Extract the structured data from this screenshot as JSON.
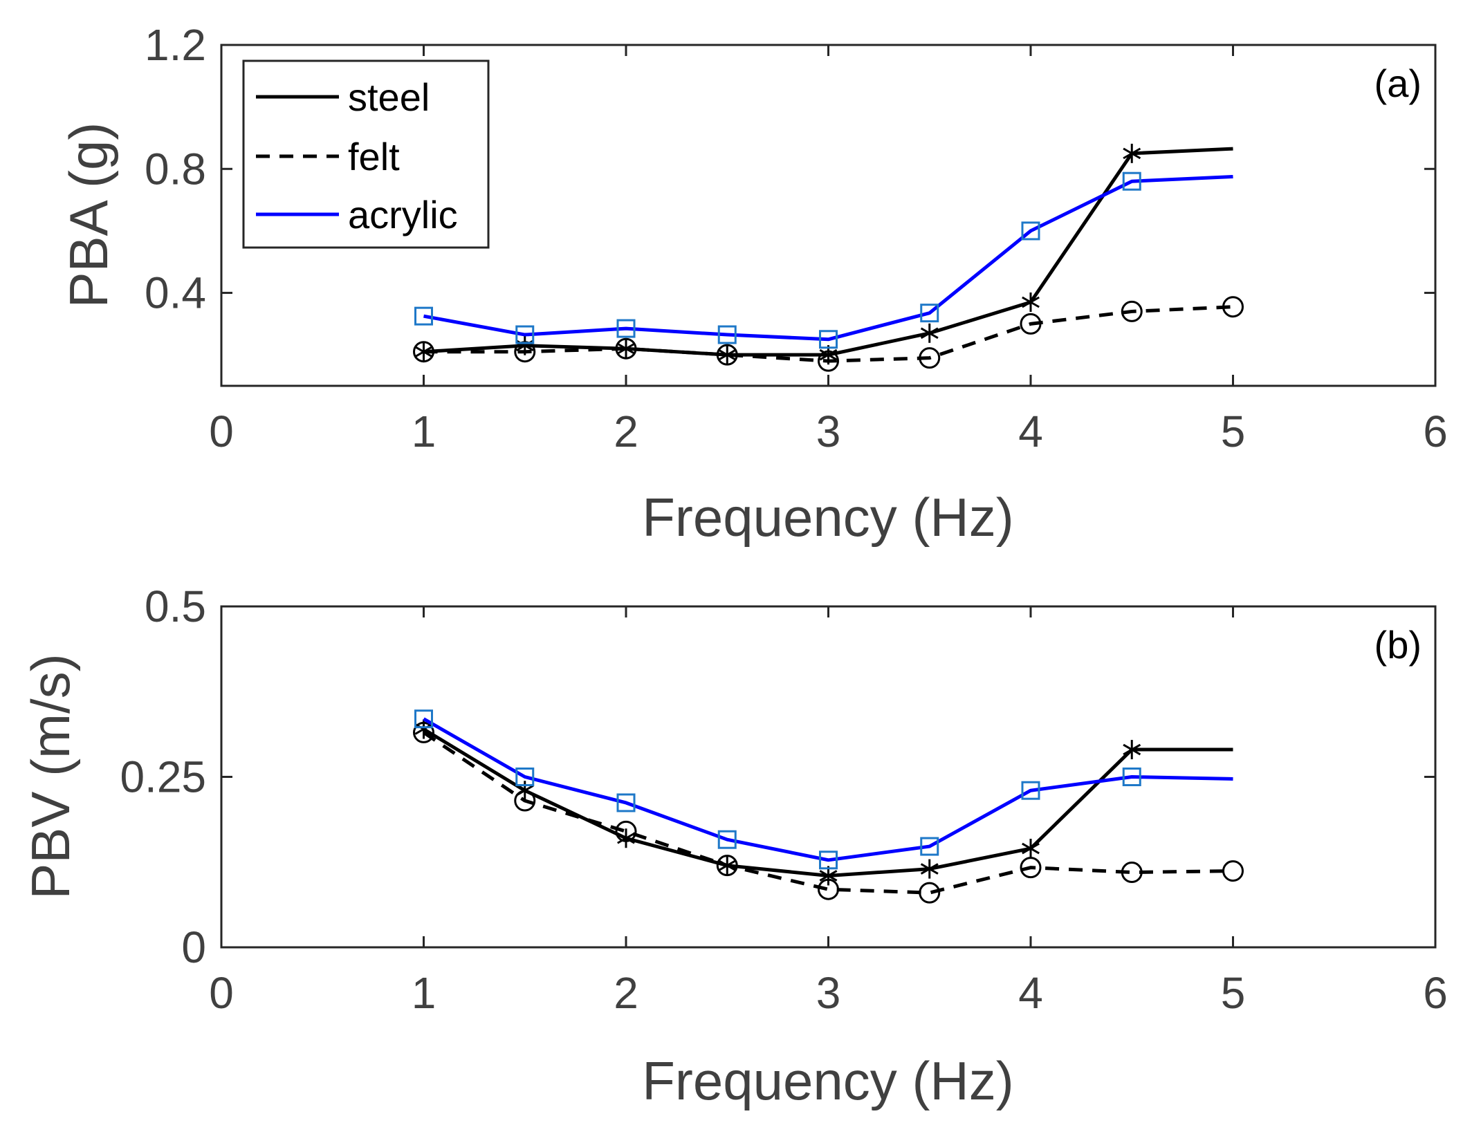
{
  "chart_data": [
    {
      "type": "line",
      "panel_label": "(a)",
      "xlabel": "Frequency (Hz)",
      "ylabel": "PBA (g)",
      "xlim": [
        0,
        6
      ],
      "ylim": [
        0.1,
        1.2
      ],
      "xticks": [
        "0",
        "1",
        "2",
        "3",
        "4",
        "5",
        "6"
      ],
      "yticks": [
        "0.4",
        "0.8",
        "1.2"
      ],
      "ytick_values": [
        0.4,
        0.8,
        1.2
      ],
      "legend": {
        "position": "top-left",
        "entries": [
          "steel",
          "felt",
          "acrylic"
        ]
      },
      "series": [
        {
          "name": "steel",
          "color": "#000000",
          "dash": "solid",
          "marker": "asterisk",
          "x": [
            1,
            1.5,
            2,
            2.5,
            3,
            3.5,
            4,
            4.5,
            5
          ],
          "y": [
            0.21,
            0.23,
            0.22,
            0.2,
            0.2,
            0.27,
            0.37,
            0.85,
            0.865
          ],
          "marker_x": [
            1,
            1.5,
            2,
            2.5,
            3,
            3.5,
            4,
            4.5
          ]
        },
        {
          "name": "felt",
          "color": "#000000",
          "dash": "dashed",
          "marker": "circle",
          "x": [
            1,
            1.5,
            2,
            2.5,
            3,
            3.5,
            4,
            4.5,
            5
          ],
          "y": [
            0.21,
            0.21,
            0.22,
            0.2,
            0.18,
            0.19,
            0.3,
            0.34,
            0.355
          ],
          "marker_x": [
            1,
            1.5,
            2,
            2.5,
            3,
            3.5,
            4,
            4.5,
            5
          ]
        },
        {
          "name": "acrylic",
          "color": "#0000ff",
          "marker_color": "#1e78c8",
          "dash": "solid",
          "marker": "square",
          "x": [
            1,
            1.5,
            2,
            2.5,
            3,
            3.5,
            4,
            4.5,
            5
          ],
          "y": [
            0.325,
            0.265,
            0.285,
            0.265,
            0.25,
            0.335,
            0.6,
            0.76,
            0.775
          ],
          "marker_x": [
            1,
            1.5,
            2,
            2.5,
            3,
            3.5,
            4,
            4.5
          ]
        }
      ]
    },
    {
      "type": "line",
      "panel_label": "(b)",
      "xlabel": "Frequency (Hz)",
      "ylabel": "PBV (m/s)",
      "xlim": [
        0,
        6
      ],
      "ylim": [
        0,
        0.5
      ],
      "xticks": [
        "0",
        "1",
        "2",
        "3",
        "4",
        "5",
        "6"
      ],
      "yticks": [
        "0",
        "0.25",
        "0.5"
      ],
      "ytick_values": [
        0,
        0.25,
        0.5
      ],
      "series": [
        {
          "name": "steel",
          "color": "#000000",
          "dash": "solid",
          "marker": "asterisk",
          "x": [
            1,
            1.5,
            2,
            2.5,
            3,
            3.5,
            4,
            4.5,
            5
          ],
          "y": [
            0.32,
            0.23,
            0.16,
            0.12,
            0.105,
            0.115,
            0.145,
            0.29,
            0.29
          ],
          "marker_x": [
            1,
            1.5,
            2,
            2.5,
            3,
            3.5,
            4,
            4.5
          ]
        },
        {
          "name": "felt",
          "color": "#000000",
          "dash": "dashed",
          "marker": "circle",
          "x": [
            1,
            1.5,
            2,
            2.5,
            3,
            3.5,
            4,
            4.5,
            5
          ],
          "y": [
            0.315,
            0.215,
            0.17,
            0.12,
            0.085,
            0.08,
            0.117,
            0.11,
            0.112
          ],
          "marker_x": [
            1,
            1.5,
            2,
            2.5,
            3,
            3.5,
            4,
            4.5,
            5
          ]
        },
        {
          "name": "acrylic",
          "color": "#0000ff",
          "marker_color": "#1e78c8",
          "dash": "solid",
          "marker": "square",
          "x": [
            1,
            1.5,
            2,
            2.5,
            3,
            3.5,
            4,
            4.5,
            5
          ],
          "y": [
            0.335,
            0.25,
            0.212,
            0.158,
            0.128,
            0.148,
            0.23,
            0.25,
            0.247
          ],
          "marker_x": [
            1,
            1.5,
            2,
            2.5,
            3,
            3.5,
            4,
            4.5
          ]
        }
      ]
    }
  ]
}
